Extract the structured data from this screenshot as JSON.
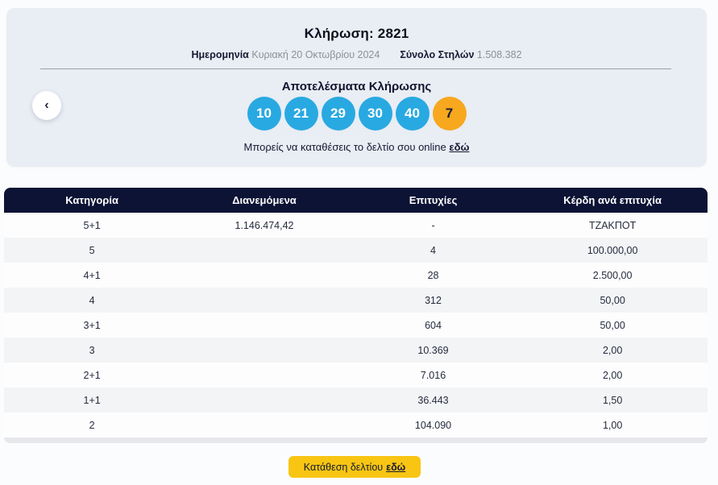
{
  "card": {
    "draw_title": "Κλήρωση: 2821",
    "date_label": "Ημερομηνία",
    "date_value": "Κυριακή 20 Οκτωβρίου 2024",
    "columns_label": "Σύνολο Στηλών",
    "columns_value": "1.508.382",
    "results_title": "Αποτελέσματα Κλήρωσης",
    "back_icon": "‹",
    "online_text": "Μπορείς να καταθέσεις το δελτίο σου online",
    "online_link_label": "εδώ"
  },
  "draw": {
    "numbers": [
      "10",
      "21",
      "29",
      "30",
      "40"
    ],
    "bonus_number": "7",
    "ball_color": "#29a9e1",
    "bonus_ball_color": "#f7a81e"
  },
  "table": {
    "headers": [
      "Κατηγορία",
      "Διανεμόμενα",
      "Επιτυχίες",
      "Κέρδη ανά επιτυχία"
    ],
    "rows": [
      {
        "category": "5+1",
        "distributed": "1.146.474,42",
        "winners": "-",
        "prize": "ΤΖΑΚΠΟΤ"
      },
      {
        "category": "5",
        "distributed": "",
        "winners": "4",
        "prize": "100.000,00"
      },
      {
        "category": "4+1",
        "distributed": "",
        "winners": "28",
        "prize": "2.500,00"
      },
      {
        "category": "4",
        "distributed": "",
        "winners": "312",
        "prize": "50,00"
      },
      {
        "category": "3+1",
        "distributed": "",
        "winners": "604",
        "prize": "50,00"
      },
      {
        "category": "3",
        "distributed": "",
        "winners": "10.369",
        "prize": "2,00"
      },
      {
        "category": "2+1",
        "distributed": "",
        "winners": "7.016",
        "prize": "2,00"
      },
      {
        "category": "1+1",
        "distributed": "",
        "winners": "36.443",
        "prize": "1,50"
      },
      {
        "category": "2",
        "distributed": "",
        "winners": "104.090",
        "prize": "1,00"
      }
    ]
  },
  "footer": {
    "button_text": "Κατάθεση δελτίου",
    "button_link_label": "εδώ"
  },
  "colors": {
    "card_background": "#e9edf4",
    "table_header_background": "#0c1335",
    "button_yellow": "#f8c513",
    "ball_blue": "#29a9e1",
    "bonus_orange": "#f7a81e"
  }
}
